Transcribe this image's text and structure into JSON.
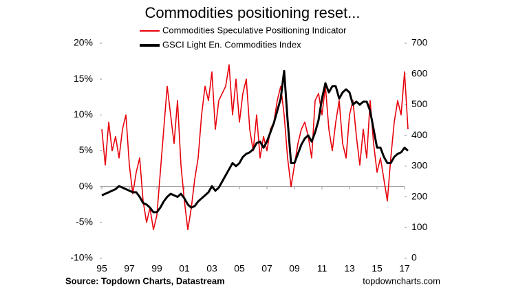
{
  "chart_data": {
    "type": "line",
    "title": "Commodities positioning reset...",
    "source": "Source: Topdown Charts, Datastream",
    "website": "topdowncharts.com",
    "x": [
      1995,
      1995.25,
      1995.5,
      1995.75,
      1996,
      1996.25,
      1996.5,
      1996.75,
      1997,
      1997.25,
      1997.5,
      1997.75,
      1998,
      1998.25,
      1998.5,
      1998.75,
      1999,
      1999.25,
      1999.5,
      1999.75,
      2000,
      2000.25,
      2000.5,
      2000.75,
      2001,
      2001.25,
      2001.5,
      2001.75,
      2002,
      2002.25,
      2002.5,
      2002.75,
      2003,
      2003.25,
      2003.5,
      2003.75,
      2004,
      2004.25,
      2004.5,
      2004.75,
      2005,
      2005.25,
      2005.5,
      2005.75,
      2006,
      2006.25,
      2006.5,
      2006.75,
      2007,
      2007.25,
      2007.5,
      2007.75,
      2008,
      2008.25,
      2008.5,
      2008.75,
      2009,
      2009.25,
      2009.5,
      2009.75,
      2010,
      2010.25,
      2010.5,
      2010.75,
      2011,
      2011.25,
      2011.5,
      2011.75,
      2012,
      2012.25,
      2012.5,
      2012.75,
      2013,
      2013.25,
      2013.5,
      2013.75,
      2014,
      2014.25,
      2014.5,
      2014.75,
      2015,
      2015.25,
      2015.5,
      2015.75,
      2016,
      2016.25,
      2016.5,
      2016.75,
      2017,
      2017.25
    ],
    "series": [
      {
        "name": "Commodities Speculative Positioning Indicator",
        "color": "#e8000b",
        "values": [
          8,
          3,
          9,
          5,
          7,
          4,
          8,
          10,
          3,
          -1,
          2,
          4,
          -2,
          -5,
          -3,
          -6,
          -4,
          2,
          8,
          14,
          10,
          6,
          12,
          3,
          -2,
          -6,
          -3,
          1,
          4,
          10,
          14,
          12,
          16,
          8,
          12,
          13,
          14,
          17,
          10,
          15,
          9,
          13,
          15,
          8,
          5,
          10,
          4,
          7,
          5,
          8,
          9,
          12,
          14,
          10,
          4,
          0,
          3,
          6,
          8,
          9,
          7,
          4,
          12,
          13,
          10,
          14,
          8,
          5,
          9,
          12,
          6,
          4,
          10,
          12,
          7,
          3,
          8,
          4,
          12,
          6,
          2,
          4,
          1,
          -2,
          4,
          9,
          12,
          10,
          16,
          8
        ]
      },
      {
        "name": "GSCI Light En. Commodities Index",
        "color": "#000000",
        "axis": "y2",
        "values": [
          205,
          210,
          215,
          220,
          225,
          235,
          230,
          225,
          220,
          215,
          215,
          200,
          180,
          175,
          165,
          150,
          150,
          165,
          185,
          200,
          210,
          205,
          200,
          210,
          195,
          175,
          165,
          170,
          185,
          195,
          205,
          215,
          235,
          220,
          230,
          250,
          270,
          290,
          310,
          300,
          310,
          330,
          340,
          345,
          355,
          375,
          380,
          360,
          380,
          410,
          440,
          480,
          520,
          610,
          450,
          310,
          310,
          340,
          370,
          390,
          400,
          380,
          410,
          450,
          520,
          570,
          540,
          560,
          560,
          520,
          540,
          550,
          540,
          500,
          510,
          500,
          510,
          510,
          480,
          420,
          360,
          360,
          330,
          310,
          310,
          330,
          340,
          345,
          360,
          350
        ]
      }
    ],
    "xlim": [
      1995,
      2017
    ],
    "xticks": [
      {
        "value": 1995,
        "label": "95"
      },
      {
        "value": 1997,
        "label": "97"
      },
      {
        "value": 1999,
        "label": "99"
      },
      {
        "value": 2001,
        "label": "01"
      },
      {
        "value": 2003,
        "label": "03"
      },
      {
        "value": 2005,
        "label": "05"
      },
      {
        "value": 2007,
        "label": "07"
      },
      {
        "value": 2009,
        "label": "09"
      },
      {
        "value": 2011,
        "label": "11"
      },
      {
        "value": 2013,
        "label": "13"
      },
      {
        "value": 2015,
        "label": "15"
      },
      {
        "value": 2017,
        "label": "17"
      }
    ],
    "ylim": [
      -10,
      20
    ],
    "yticks": [
      {
        "value": -10,
        "label": "-10%"
      },
      {
        "value": -5,
        "label": "-5%"
      },
      {
        "value": 0,
        "label": "0%"
      },
      {
        "value": 5,
        "label": "5%"
      },
      {
        "value": 10,
        "label": "10%"
      },
      {
        "value": 15,
        "label": "15%"
      },
      {
        "value": 20,
        "label": "20%"
      }
    ],
    "y2lim": [
      0,
      700
    ],
    "y2ticks": [
      0,
      100,
      200,
      300,
      400,
      500,
      600,
      700
    ],
    "grid": false
  }
}
